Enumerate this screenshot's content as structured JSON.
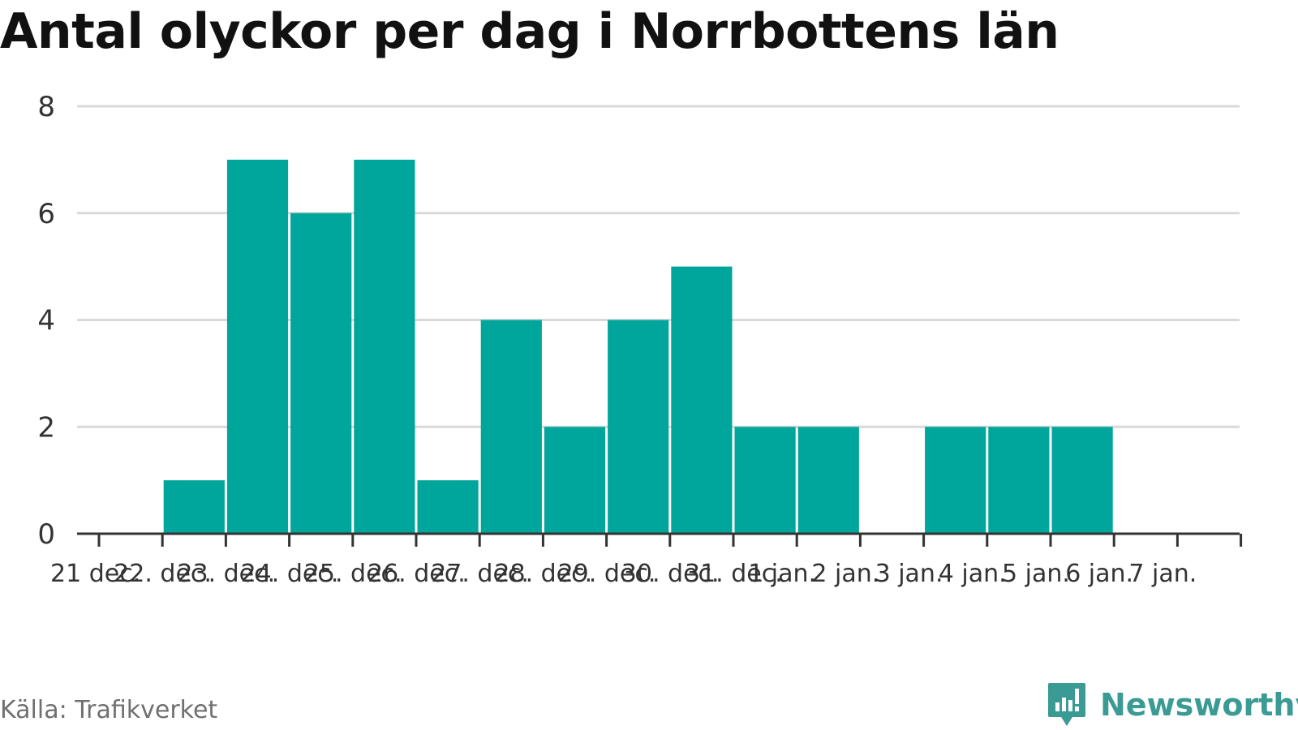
{
  "chart_data": {
    "type": "bar",
    "title": "Antal olyckor per dag i Norrbottens län",
    "xlabel": "",
    "ylabel": "",
    "categories": [
      "21 dec.",
      "22. dec.",
      "23. dec.",
      "24. dec.",
      "25. dec.",
      "26. dec.",
      "27. dec.",
      "28. dec.",
      "29. dec.",
      "30. dec.",
      "31. dec.",
      "1 jan.",
      "2 jan.",
      "3 jan.",
      "4 jan.",
      "5 jan.",
      "6 jan.",
      "7 jan."
    ],
    "values": [
      0,
      1,
      7,
      6,
      7,
      1,
      4,
      2,
      4,
      5,
      2,
      2,
      0,
      2,
      2,
      2,
      0,
      0
    ],
    "yticks": [
      0,
      2,
      4,
      6,
      8
    ],
    "ylim": [
      0,
      8
    ],
    "grid": true,
    "bar_color": "#00a59b"
  },
  "footer": {
    "source": "Källa: Trafikverket",
    "brand": "Newsworthy",
    "brand_color": "#3a9a94",
    "brand_icon": "newsworthy-logo-icon"
  }
}
